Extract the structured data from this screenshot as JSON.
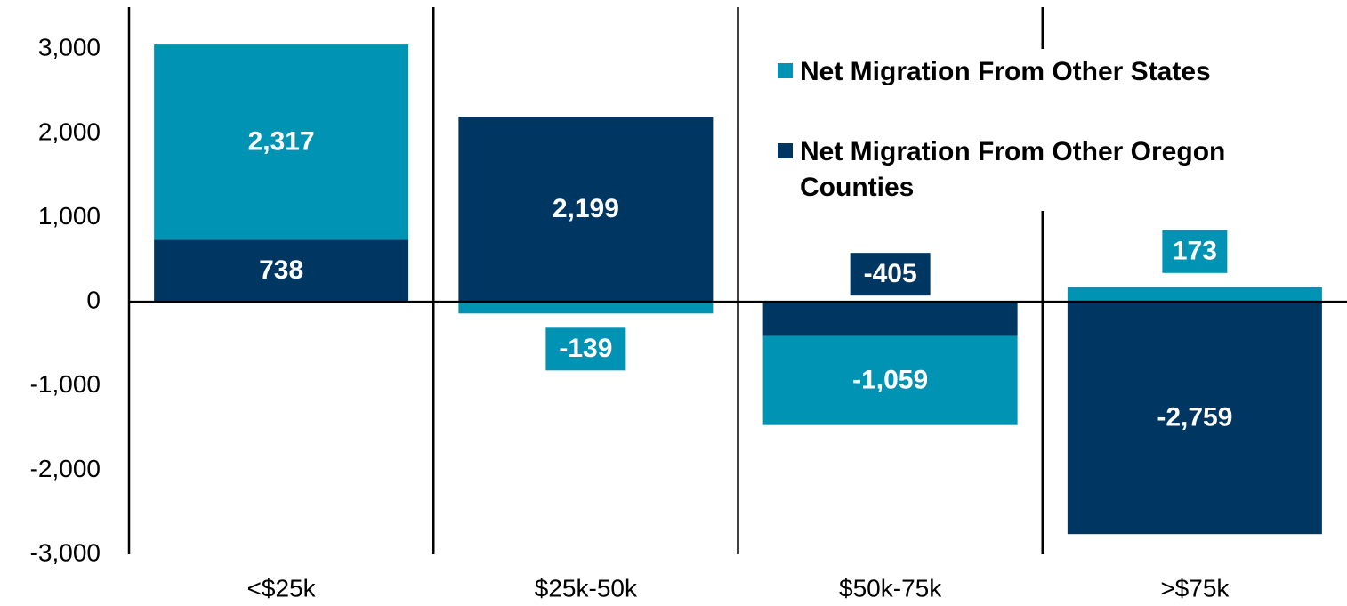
{
  "chart_data": {
    "type": "stacked-bar",
    "categories": [
      "<$25k",
      "$25k-50k",
      "$50k-75k",
      ">$75k"
    ],
    "series": [
      {
        "name": "Net Migration From Other States",
        "color": "#0093b4",
        "values": [
          2317,
          -139,
          -1059,
          173
        ],
        "value_labels": [
          "2,317",
          "-139",
          "-1,059",
          "173"
        ]
      },
      {
        "name": "Net Migration From Other Oregon Counties",
        "color": "#003662",
        "values": [
          738,
          2199,
          -405,
          -2759
        ],
        "value_labels": [
          "738",
          "2,199",
          "-405",
          "-2,759"
        ]
      }
    ],
    "ylim": [
      -3000,
      3500
    ],
    "yticks": [
      {
        "value": -3000,
        "label": "-3,000"
      },
      {
        "value": -2000,
        "label": "-2,000"
      },
      {
        "value": -1000,
        "label": "-1,000"
      },
      0,
      {
        "value": 1000,
        "label": "1,000"
      },
      {
        "value": 2000,
        "label": "2,000"
      },
      {
        "value": 3000,
        "label": "3,000"
      }
    ],
    "grid": false
  }
}
